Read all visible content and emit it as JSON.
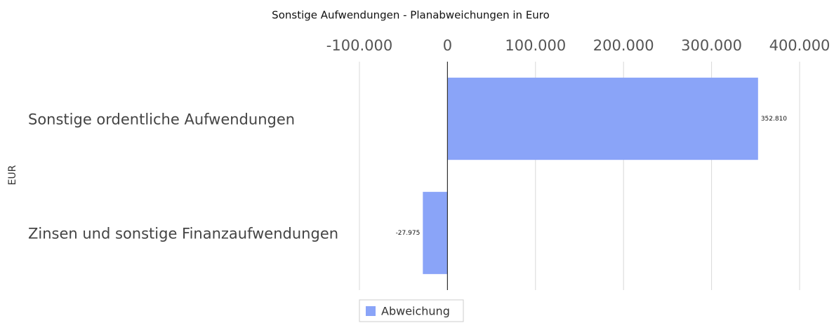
{
  "chart_data": {
    "type": "bar",
    "orientation": "horizontal",
    "title": "Sonstige Aufwendungen - Planabweichungen in Euro",
    "y_label": "EUR",
    "categories": [
      "Sonstige ordentliche Aufwendungen",
      "Zinsen und sonstige Finanzaufwendungen"
    ],
    "series": [
      {
        "name": "Abweichung",
        "color": "#8aa4f8",
        "values": [
          352810,
          -27975
        ],
        "value_labels": [
          "352.810",
          "-27.975"
        ]
      }
    ],
    "xlim": [
      -100000,
      400000
    ],
    "xticks": [
      {
        "value": -100000,
        "label": "-100.000"
      },
      0,
      {
        "value": 100000,
        "label": "100.000"
      },
      {
        "value": 200000,
        "label": "200.000"
      },
      {
        "value": 300000,
        "label": "300.000"
      },
      {
        "value": 400000,
        "label": "400.000"
      }
    ],
    "grid": true,
    "legend": "bottom"
  }
}
